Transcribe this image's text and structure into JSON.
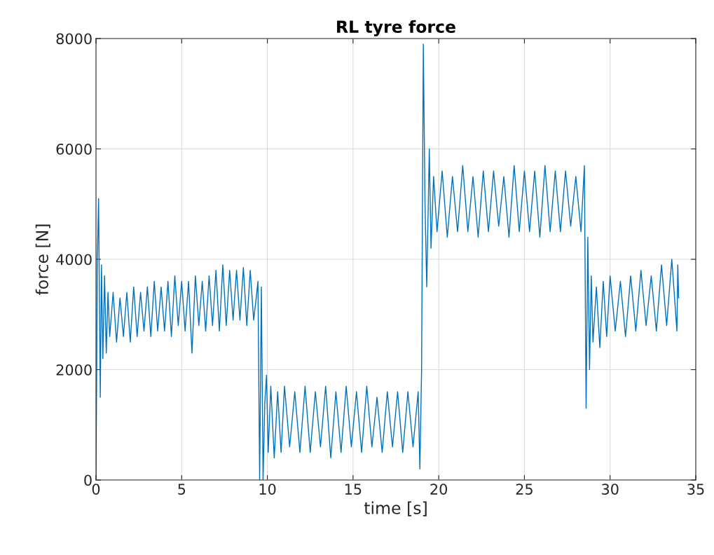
{
  "chart_data": {
    "type": "line",
    "title": "RL tyre force",
    "xlabel": "time [s]",
    "ylabel": "force [N]",
    "xlim": [
      0,
      35
    ],
    "ylim": [
      0,
      8000
    ],
    "xticks": [
      0,
      5,
      10,
      15,
      20,
      25,
      30,
      35
    ],
    "yticks": [
      0,
      2000,
      4000,
      6000,
      8000
    ],
    "grid": true,
    "marker": "none",
    "line_style": "solid",
    "series": [
      {
        "color": "#0072bd",
        "x": [
          0,
          0.08,
          0.15,
          0.25,
          0.32,
          0.4,
          0.5,
          0.6,
          0.7,
          0.8,
          1.0,
          1.2,
          1.4,
          1.6,
          1.8,
          2.0,
          2.2,
          2.4,
          2.6,
          2.8,
          3.0,
          3.2,
          3.4,
          3.6,
          3.8,
          4.0,
          4.2,
          4.4,
          4.6,
          4.8,
          5.0,
          5.2,
          5.4,
          5.6,
          5.8,
          6.0,
          6.2,
          6.4,
          6.6,
          6.8,
          7.0,
          7.2,
          7.4,
          7.6,
          7.8,
          8.0,
          8.2,
          8.4,
          8.6,
          8.8,
          9.0,
          9.2,
          9.35,
          9.45,
          9.55,
          9.65,
          9.75,
          9.85,
          9.95,
          10.05,
          10.2,
          10.4,
          10.6,
          10.8,
          11.0,
          11.3,
          11.6,
          11.9,
          12.2,
          12.5,
          12.8,
          13.1,
          13.4,
          13.7,
          14.0,
          14.3,
          14.6,
          14.9,
          15.2,
          15.5,
          15.8,
          16.1,
          16.4,
          16.7,
          17.0,
          17.3,
          17.6,
          17.9,
          18.2,
          18.5,
          18.8,
          18.9,
          19.0,
          19.1,
          19.2,
          19.3,
          19.45,
          19.55,
          19.7,
          19.9,
          20.2,
          20.5,
          20.8,
          21.1,
          21.4,
          21.7,
          22.0,
          22.3,
          22.6,
          22.9,
          23.2,
          23.5,
          23.8,
          24.1,
          24.4,
          24.7,
          25.0,
          25.3,
          25.6,
          25.9,
          26.2,
          26.5,
          26.8,
          27.1,
          27.4,
          27.7,
          28.0,
          28.3,
          28.5,
          28.6,
          28.7,
          28.8,
          28.9,
          29.0,
          29.2,
          29.4,
          29.6,
          29.8,
          30.0,
          30.3,
          30.6,
          30.9,
          31.2,
          31.5,
          31.8,
          32.1,
          32.4,
          32.7,
          33.0,
          33.3,
          33.6,
          33.9,
          33.95,
          34.0
        ],
        "values": [
          0,
          4000,
          5100,
          1500,
          3900,
          2200,
          3700,
          2300,
          3400,
          2600,
          3400,
          2500,
          3300,
          2600,
          3400,
          2500,
          3500,
          2600,
          3400,
          2700,
          3500,
          2600,
          3600,
          2700,
          3500,
          2700,
          3600,
          2600,
          3700,
          2800,
          3600,
          2700,
          3600,
          2300,
          3700,
          2800,
          3600,
          2700,
          3700,
          2800,
          3800,
          2700,
          3900,
          2800,
          3800,
          2900,
          3800,
          2900,
          3850,
          2800,
          3800,
          2900,
          3300,
          3600,
          0,
          3500,
          0,
          1400,
          1900,
          500,
          1700,
          400,
          1600,
          500,
          1700,
          600,
          1600,
          500,
          1700,
          500,
          1600,
          600,
          1700,
          400,
          1600,
          500,
          1700,
          600,
          1600,
          500,
          1700,
          600,
          1500,
          500,
          1600,
          600,
          1600,
          500,
          1600,
          600,
          1600,
          200,
          2000,
          7900,
          5000,
          3500,
          6000,
          4200,
          5500,
          4500,
          5600,
          4400,
          5500,
          4500,
          5700,
          4500,
          5500,
          4400,
          5600,
          4500,
          5600,
          4600,
          5500,
          4400,
          5700,
          4500,
          5600,
          4500,
          5600,
          4400,
          5700,
          4500,
          5600,
          4500,
          5600,
          4600,
          5500,
          4500,
          5700,
          1300,
          4400,
          2000,
          3700,
          2500,
          3500,
          2400,
          3600,
          2600,
          3700,
          2700,
          3600,
          2600,
          3700,
          2700,
          3800,
          2800,
          3700,
          2700,
          3900,
          2800,
          4000,
          2700,
          3900,
          3300
        ]
      }
    ]
  }
}
